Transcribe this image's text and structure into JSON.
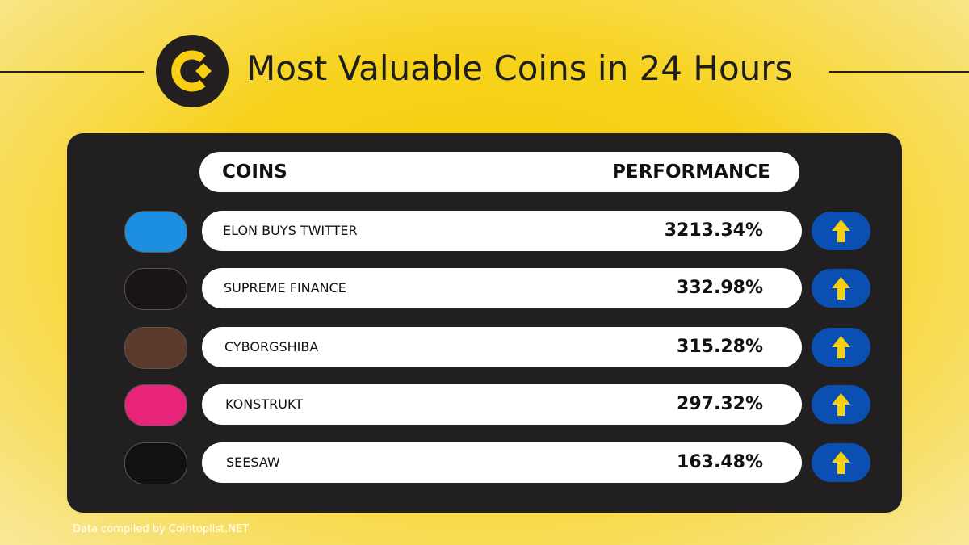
{
  "header": {
    "title": "Most Valuable Coins in 24 Hours"
  },
  "table": {
    "headers": [
      "COINS",
      "PERFORMANCE"
    ],
    "rows": [
      {
        "name": "ELON BUYS TWITTER",
        "performance": "3213.34%"
      },
      {
        "name": "SUPREME FINANCE",
        "performance": "332.98%"
      },
      {
        "name": "CYBORGSHIBA",
        "performance": "315.28%"
      },
      {
        "name": "KONSTRUKT",
        "performance": "297.32%"
      },
      {
        "name": "SEESAW",
        "performance": "163.48%"
      }
    ]
  },
  "footer": {
    "source": "Data compiled by Cointoplist.NET"
  }
}
